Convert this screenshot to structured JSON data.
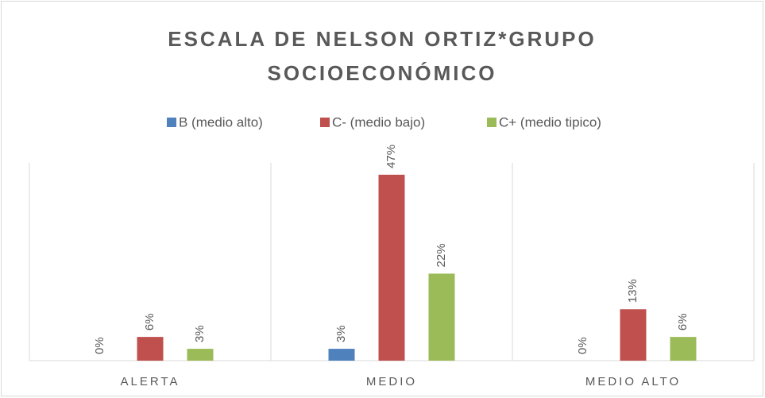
{
  "chart_data": {
    "type": "bar",
    "title": "ESCALA DE NELSON ORTIZ*GRUPO SOCIOECONÓMICO",
    "categories": [
      "ALERTA",
      "MEDIO",
      "MEDIO ALTO"
    ],
    "series": [
      {
        "name": "B (medio alto)",
        "color": "#4f81bd",
        "values": [
          0,
          3,
          0
        ],
        "value_labels": [
          "0%",
          "3%",
          "0%"
        ]
      },
      {
        "name": "C- (medio bajo)",
        "color": "#c0504d",
        "values": [
          6,
          47,
          13
        ],
        "value_labels": [
          "6%",
          "47%",
          "13%"
        ]
      },
      {
        "name": "C+ (medio tipico)",
        "color": "#9bbb59",
        "values": [
          3,
          22,
          6
        ],
        "value_labels": [
          "3%",
          "22%",
          "6%"
        ]
      }
    ],
    "ylim": [
      0,
      50
    ],
    "legend": "top"
  }
}
